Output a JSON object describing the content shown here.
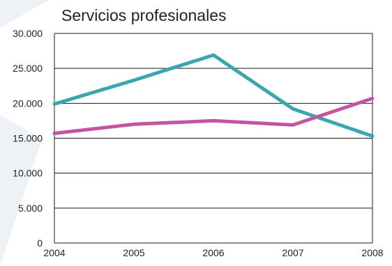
{
  "chart_data": {
    "type": "line",
    "title": "Servicios profesionales",
    "xlabel": "",
    "ylabel": "",
    "x": [
      "2004",
      "2005",
      "2006",
      "2007",
      "2008"
    ],
    "ylim": [
      0,
      30000
    ],
    "yticks": [
      0,
      5000,
      10000,
      15000,
      20000,
      25000,
      30000
    ],
    "ytick_labels": [
      "0",
      "5.000",
      "10.000",
      "15.000",
      "20.000",
      "25.000",
      "30.000"
    ],
    "grid": true,
    "legend": "none",
    "series": [
      {
        "color": "#3aa6ad",
        "values": [
          19900,
          23300,
          26900,
          19200,
          15300
        ]
      },
      {
        "color": "#c2559f",
        "values": [
          15700,
          17000,
          17500,
          16900,
          20700
        ]
      }
    ]
  },
  "background": {
    "shape_color": "#eef2f7"
  }
}
